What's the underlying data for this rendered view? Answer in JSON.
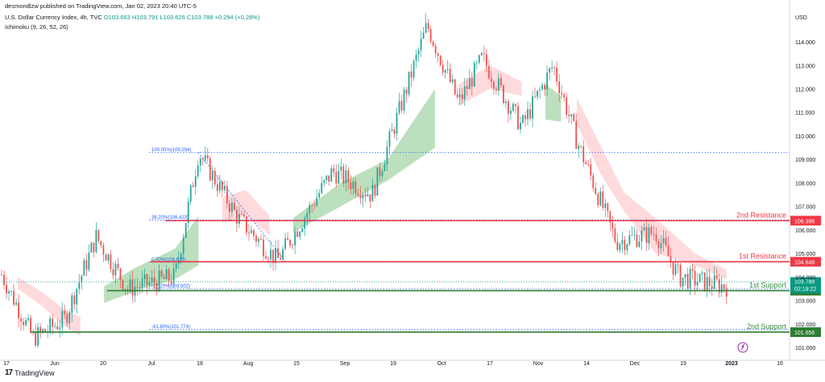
{
  "header": {
    "author_line": "desmondlzw published on TradingView.com, Jan 02, 2023 20:40 UTC-5",
    "symbol": "U.S. Dollar Currency Index, 4h, TVC",
    "ohlc": "O103.663 H103.791 L103.626 C103.788 +0.294 (+0.28%)",
    "indicator": "Ichimoku (9, 26, 52, 26)"
  },
  "footer": {
    "brand": "TradingView",
    "logo": "17"
  },
  "colors": {
    "up": "#26a69a",
    "down": "#ef5350",
    "resistance": "#f23645",
    "support": "#089981",
    "support_line": "#2e7d32",
    "fib": "#2962ff",
    "cloud_bull": "#a5d6a7",
    "cloud_bear": "#ffcdd2"
  },
  "chart_data": {
    "type": "candlestick",
    "currency": "USD",
    "ylim": [
      100.8,
      115.3
    ],
    "y_ticks": [
      "114.000",
      "113.000",
      "112.000",
      "111.000",
      "110.000",
      "109.000",
      "108.000",
      "107.000",
      "106.000",
      "105.000",
      "104.000",
      "103.000",
      "102.000",
      "101.000"
    ],
    "x_ticks": [
      "17",
      "Jun",
      "20",
      "Jul",
      "18",
      "Aug",
      "15",
      "Sep",
      "19",
      "Oct",
      "17",
      "Nov",
      "14",
      "Dec",
      "19",
      "2023",
      "16"
    ],
    "price_path": [
      [
        0,
        104.1
      ],
      [
        0.04,
        101.4
      ],
      [
        0.08,
        102.2
      ],
      [
        0.12,
        105.7
      ],
      [
        0.16,
        103.5
      ],
      [
        0.22,
        104.0
      ],
      [
        0.25,
        109.3
      ],
      [
        0.3,
        106.5
      ],
      [
        0.35,
        104.7
      ],
      [
        0.42,
        108.5
      ],
      [
        0.47,
        107.5
      ],
      [
        0.54,
        114.7
      ],
      [
        0.58,
        111.4
      ],
      [
        0.61,
        113.3
      ],
      [
        0.66,
        110.4
      ],
      [
        0.7,
        113.0
      ],
      [
        0.73,
        109.8
      ],
      [
        0.78,
        105.5
      ],
      [
        0.83,
        105.9
      ],
      [
        0.86,
        104.0
      ],
      [
        0.92,
        103.6
      ]
    ],
    "levels": [
      {
        "label": "2nd Resistance",
        "value": "106.396",
        "y": 106.396,
        "role": "resistance"
      },
      {
        "label": "1st Resistance",
        "value": "104.648",
        "y": 104.648,
        "role": "resistance"
      },
      {
        "label": "1st Support",
        "value": "103.418",
        "y": 103.418,
        "role": "support"
      },
      {
        "label": "2nd Support",
        "value": "101.656",
        "y": 101.656,
        "role": "support"
      }
    ],
    "fib_levels": [
      {
        "label": "100.00%(109.294)",
        "y": 109.294
      },
      {
        "label": "38.20%(106.423)",
        "y": 106.423
      },
      {
        "label": "0.00%(104.636)",
        "y": 104.636
      },
      {
        "label": "-27.20%(103.502)",
        "y": 103.502
      },
      {
        "label": "-61.80%(101.774)",
        "y": 101.774
      }
    ],
    "current_price": {
      "value": "103.788",
      "countdown": "02:19:22",
      "y": 103.788
    },
    "cloud_segments": [
      {
        "kind": "bear",
        "points": [
          [
            0.02,
            104.0,
            103.5
          ],
          [
            0.05,
            103.4,
            102.8
          ],
          [
            0.08,
            102.6,
            101.9
          ],
          [
            0.1,
            102.3,
            101.5
          ]
        ]
      },
      {
        "kind": "bull",
        "points": [
          [
            0.13,
            103.6,
            102.9
          ],
          [
            0.17,
            104.4,
            103.4
          ],
          [
            0.22,
            105.2,
            103.9
          ],
          [
            0.25,
            106.6,
            104.5
          ]
        ]
      },
      {
        "kind": "bear",
        "points": [
          [
            0.28,
            107.4,
            106.3
          ],
          [
            0.31,
            107.7,
            106.6
          ],
          [
            0.34,
            106.6,
            105.8
          ]
        ]
      },
      {
        "kind": "bull",
        "points": [
          [
            0.37,
            106.5,
            105.9
          ],
          [
            0.43,
            108.0,
            107.0
          ],
          [
            0.49,
            109.0,
            108.1
          ],
          [
            0.55,
            112.0,
            109.5
          ]
        ]
      },
      {
        "kind": "bear",
        "points": [
          [
            0.58,
            112.2,
            111.3
          ],
          [
            0.62,
            113.0,
            112.0
          ],
          [
            0.66,
            112.3,
            111.7
          ]
        ]
      },
      {
        "kind": "bull",
        "points": [
          [
            0.69,
            112.2,
            110.7
          ],
          [
            0.71,
            111.7,
            110.6
          ]
        ]
      },
      {
        "kind": "bear",
        "points": [
          [
            0.73,
            111.6,
            110.5
          ],
          [
            0.76,
            109.6,
            108.4
          ],
          [
            0.79,
            107.6,
            106.8
          ],
          [
            0.83,
            106.5,
            105.0
          ],
          [
            0.88,
            105.0,
            104.5
          ],
          [
            0.92,
            104.3,
            103.9
          ]
        ]
      }
    ]
  }
}
